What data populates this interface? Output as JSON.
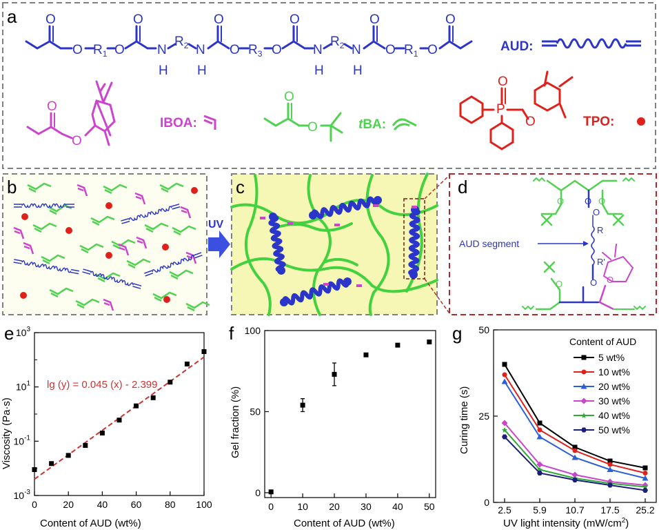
{
  "panels": {
    "a": {
      "letter": "a",
      "chem": {
        "o": "O",
        "r1": "R",
        "r1_sub": "1",
        "r2": "R",
        "r2_sub": "2",
        "r3": "R",
        "r3_sub": "3",
        "n": "N",
        "h": "H",
        "p": "P"
      },
      "aud_label": "AUD:",
      "iboa_label": "IBOA:",
      "tba_label_italic": "t",
      "tba_label_rest": "BA:",
      "tpo_label": "TPO:",
      "colors": {
        "aud": "#2b35c9",
        "iboa": "#cc44cc",
        "tba": "#4fd24f",
        "tpo": "#e0201b"
      }
    },
    "b": {
      "letter": "b"
    },
    "uv": {
      "label": "UV"
    },
    "c": {
      "letter": "c"
    },
    "d": {
      "letter": "d",
      "segment_label": "AUD segment",
      "r": "R",
      "r_prime": "R'",
      "o": "O"
    },
    "e": {
      "letter": "e",
      "chart_data": {
        "type": "scatter",
        "xlabel": "Content of AUD (wt%)",
        "ylabel": "Viscosity (Pa·s)",
        "yscale": "log",
        "xlim": [
          0,
          100
        ],
        "ylim": [
          0.001,
          1000
        ],
        "x_ticks": [
          "0",
          "20",
          "40",
          "60",
          "80",
          "100"
        ],
        "y_ticks": [
          {
            "base": "10",
            "exp": "3"
          },
          {
            "base": "10",
            "exp": "1"
          },
          {
            "base": "10",
            "exp": "-1"
          },
          {
            "base": "10",
            "exp": "-3"
          }
        ],
        "points": [
          {
            "x": 0,
            "y": 0.009
          },
          {
            "x": 10,
            "y": 0.015
          },
          {
            "x": 20,
            "y": 0.03
          },
          {
            "x": 30,
            "y": 0.07
          },
          {
            "x": 40,
            "y": 0.2
          },
          {
            "x": 50,
            "y": 0.6
          },
          {
            "x": 60,
            "y": 2.0
          },
          {
            "x": 70,
            "y": 4.0
          },
          {
            "x": 80,
            "y": 15
          },
          {
            "x": 90,
            "y": 70
          },
          {
            "x": 100,
            "y": 200
          }
        ],
        "fit": {
          "slope": 0.045,
          "intercept": -2.399
        },
        "annotation": "lg (y) = 0.045 (x) - 2.399"
      }
    },
    "f": {
      "letter": "f",
      "chart_data": {
        "type": "scatter",
        "xlabel": "Content of AUD (wt%)",
        "ylabel": "Gel fraction (%)",
        "xlim": [
          -2,
          52
        ],
        "ylim": [
          -3,
          100
        ],
        "x_ticks": [
          "0",
          "10",
          "20",
          "30",
          "40",
          "50"
        ],
        "y_ticks": [
          "0",
          "50",
          "100"
        ],
        "points": [
          {
            "x": 0,
            "y": 0.5,
            "err": 0
          },
          {
            "x": 10,
            "y": 54,
            "err": 4
          },
          {
            "x": 20,
            "y": 73,
            "err": 7
          },
          {
            "x": 30,
            "y": 85,
            "err": 1
          },
          {
            "x": 40,
            "y": 91,
            "err": 1
          },
          {
            "x": 50,
            "y": 93,
            "err": 1
          }
        ]
      }
    },
    "g": {
      "letter": "g",
      "chart_data": {
        "type": "line",
        "xlabel": "UV light intensity (mW/cm",
        "xlabel_sup": "2",
        "xlabel_end": ")",
        "ylabel": "Curing time (s)",
        "ylim": [
          0,
          50
        ],
        "y_ticks": [
          "0",
          "25",
          "50"
        ],
        "categories": [
          "2.5",
          "5.9",
          "10.7",
          "17.5",
          "25.2"
        ],
        "legend_title": "Content of AUD",
        "series": [
          {
            "name": "5 wt%",
            "color": "#000000",
            "marker": "square",
            "values": [
              40,
              23,
              16,
              12,
              10
            ]
          },
          {
            "name": "10 wt%",
            "color": "#e0201b",
            "marker": "circle",
            "values": [
              37,
              21,
              15,
              11,
              8.5
            ]
          },
          {
            "name": "20 wt%",
            "color": "#2b5fd9",
            "marker": "triangle",
            "values": [
              35,
              19,
              13,
              9.5,
              7
            ]
          },
          {
            "name": "30 wt%",
            "color": "#cc44cc",
            "marker": "diamond",
            "values": [
              23,
              11,
              8,
              6,
              5
            ]
          },
          {
            "name": "40 wt%",
            "color": "#2ea836",
            "marker": "star",
            "values": [
              21,
              9.5,
              7,
              5.5,
              4.5
            ]
          },
          {
            "name": "50 wt%",
            "color": "#1a1f7a",
            "marker": "hexagon",
            "values": [
              19,
              8.5,
              6.5,
              5,
              3.5
            ]
          }
        ]
      }
    }
  }
}
